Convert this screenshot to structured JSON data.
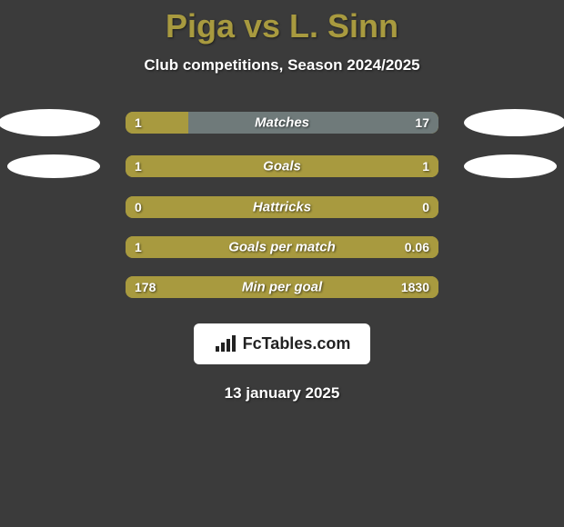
{
  "header": {
    "title": "Piga vs L. Sinn",
    "subtitle": "Club competitions, Season 2024/2025"
  },
  "colors": {
    "accent": "#a89a3f",
    "bar_right": "#6f7a7a",
    "background": "#3b3b3b",
    "text": "#ffffff",
    "player_shape": "#ffffff",
    "logo_bg": "#ffffff",
    "logo_text": "#222222"
  },
  "stats": [
    {
      "label": "Matches",
      "left_value": "1",
      "right_value": "17",
      "left_pct": 20,
      "show_players": true,
      "player_style": "normal"
    },
    {
      "label": "Goals",
      "left_value": "1",
      "right_value": "1",
      "left_pct": 100,
      "show_players": true,
      "player_style": "narrow"
    },
    {
      "label": "Hattricks",
      "left_value": "0",
      "right_value": "0",
      "left_pct": 100,
      "show_players": false
    },
    {
      "label": "Goals per match",
      "left_value": "1",
      "right_value": "0.06",
      "left_pct": 100,
      "show_players": false
    },
    {
      "label": "Min per goal",
      "left_value": "178",
      "right_value": "1830",
      "left_pct": 100,
      "show_players": false
    }
  ],
  "footer": {
    "source_label": "FcTables.com",
    "date": "13 january 2025"
  }
}
